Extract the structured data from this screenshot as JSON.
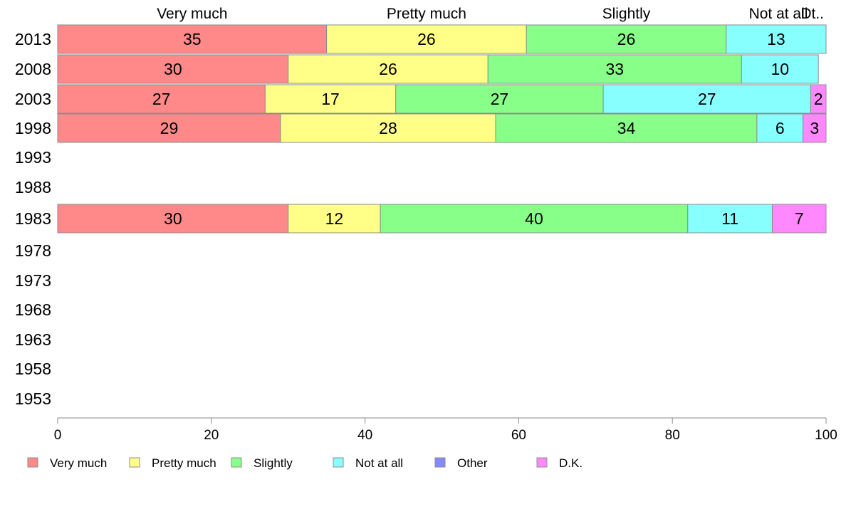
{
  "chart_data": {
    "type": "bar",
    "orientation": "horizontal",
    "stacked": true,
    "title": "",
    "xlabel": "",
    "ylabel": "",
    "xlim": [
      0,
      100
    ],
    "xticks": [
      0,
      20,
      40,
      60,
      80,
      100
    ],
    "categories": [
      "2013",
      "2008",
      "2003",
      "1998",
      "1993",
      "1988",
      "1983",
      "1978",
      "1973",
      "1968",
      "1963",
      "1958",
      "1953"
    ],
    "column_headers": [
      "Very much",
      "Pretty much",
      "Slightly",
      "Not at all",
      "Dt.."
    ],
    "series": [
      {
        "name": "Very much",
        "color": "#FF8888",
        "values": [
          35,
          30,
          27,
          29,
          null,
          null,
          30,
          null,
          null,
          null,
          null,
          null,
          null
        ]
      },
      {
        "name": "Pretty much",
        "color": "#FFFF88",
        "values": [
          26,
          26,
          17,
          28,
          null,
          null,
          12,
          null,
          null,
          null,
          null,
          null,
          null
        ]
      },
      {
        "name": "Slightly",
        "color": "#88FF88",
        "values": [
          26,
          33,
          27,
          34,
          null,
          null,
          40,
          null,
          null,
          null,
          null,
          null,
          null
        ]
      },
      {
        "name": "Not at all",
        "color": "#88FFFF",
        "values": [
          13,
          10,
          27,
          6,
          null,
          null,
          11,
          null,
          null,
          null,
          null,
          null,
          null
        ]
      },
      {
        "name": "Other",
        "color": "#8888FF",
        "values": [
          0,
          0,
          0,
          0,
          null,
          null,
          0,
          null,
          null,
          null,
          null,
          null,
          null
        ]
      },
      {
        "name": "D.K.",
        "color": "#FF88FF",
        "values": [
          0,
          0,
          2,
          3,
          null,
          null,
          7,
          null,
          null,
          null,
          null,
          null,
          null
        ]
      }
    ],
    "legend": {
      "placement": "bottom-left",
      "entries": [
        "Very much",
        "Pretty much",
        "Slightly",
        "Not at all",
        "Other",
        "D.K."
      ]
    },
    "grid": false
  }
}
